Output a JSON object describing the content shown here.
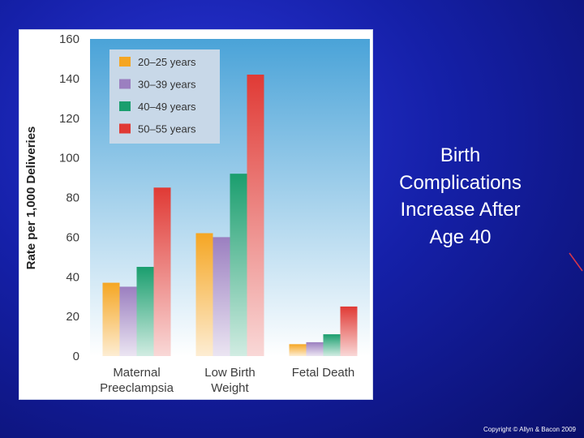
{
  "slide": {
    "title": "Birth\nComplications\nIncrease After\nAge 40",
    "copyright": "Copyright © Allyn & Bacon 2009"
  },
  "chart_data": {
    "type": "bar",
    "title": "",
    "ylabel": "Rate per 1,000 Deliveries",
    "xlabel": "",
    "ylim": [
      0,
      160
    ],
    "yticks": [
      0,
      20,
      40,
      60,
      80,
      100,
      120,
      140,
      160
    ],
    "grid": false,
    "legend_position": "top-left",
    "categories": [
      [
        "Maternal",
        "Preeclampsia"
      ],
      [
        "Low Birth",
        "Weight"
      ],
      [
        "Fetal Death"
      ]
    ],
    "series": [
      {
        "name": "20–25 years",
        "color": "#f5a623",
        "values": [
          37,
          62,
          6
        ]
      },
      {
        "name": "30–39 years",
        "color": "#9b7fc0",
        "values": [
          35,
          60,
          7
        ]
      },
      {
        "name": "40–49 years",
        "color": "#1a9e6e",
        "values": [
          45,
          92,
          11
        ]
      },
      {
        "name": "50–55 years",
        "color": "#e03a35",
        "values": [
          85,
          142,
          25
        ]
      }
    ]
  },
  "colors": {
    "plot_background_top": "#4aa3d8",
    "plot_background_bottom": "#ffffff",
    "legend_background": "#c8d8e8"
  }
}
